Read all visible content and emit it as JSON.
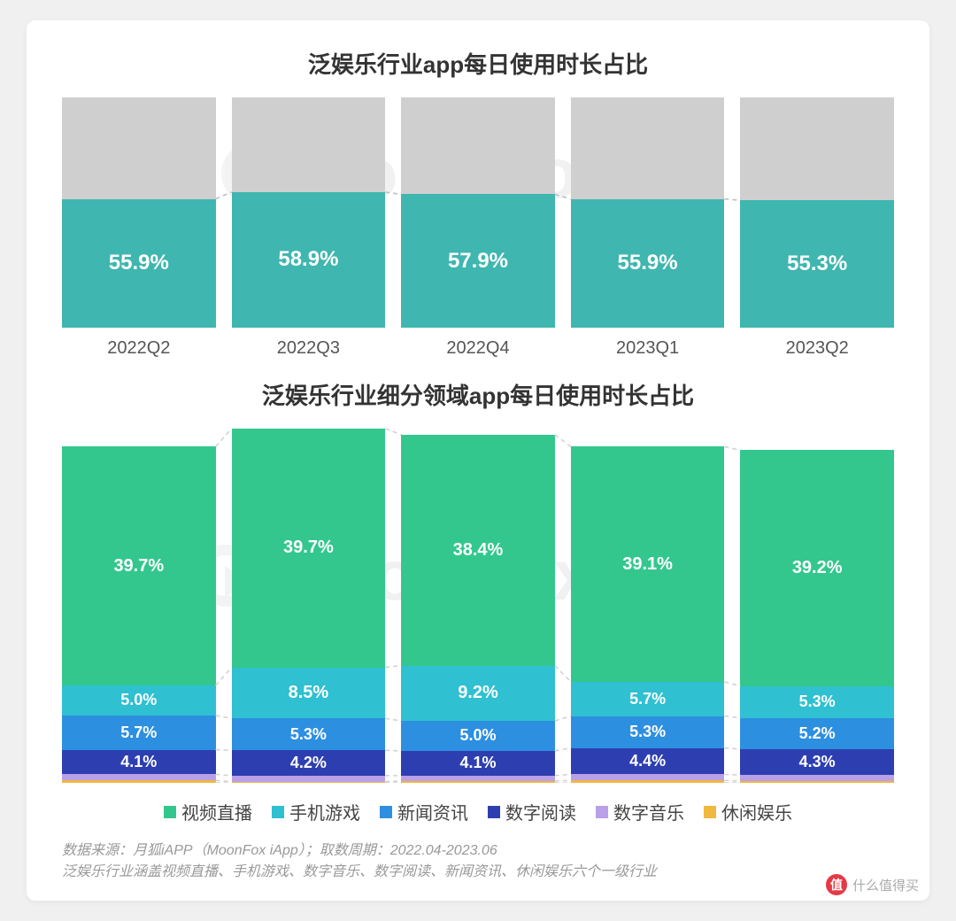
{
  "watermark_text": "MoonFox",
  "chart1": {
    "title": "泛娱乐行业app每日使用时长占比",
    "type": "stacked-bar-percent",
    "background_gray": "#cfcfcf",
    "bar_color": "#3fb6b0",
    "value_color": "#ffffff",
    "value_fontsize": 24,
    "title_fontsize": 26,
    "categories": [
      "2022Q2",
      "2022Q3",
      "2022Q4",
      "2023Q1",
      "2023Q2"
    ],
    "values": [
      55.9,
      58.9,
      57.9,
      55.9,
      55.3
    ],
    "ylim": [
      0,
      100
    ],
    "axis_label_fontsize": 20,
    "axis_label_color": "#555555"
  },
  "chart2": {
    "title": "泛娱乐行业细分领域app每日使用时长占比",
    "type": "stacked-bar",
    "title_fontsize": 26,
    "value_color": "#ffffff",
    "value_fontsize": 20,
    "categories": [
      "2022Q2",
      "2022Q3",
      "2022Q4",
      "2023Q1",
      "2023Q2"
    ],
    "series": [
      {
        "name": "视频直播",
        "color": "#33c78e"
      },
      {
        "name": "手机游戏",
        "color": "#2fc0d1"
      },
      {
        "name": "新闻资讯",
        "color": "#2d8fe0"
      },
      {
        "name": "数字阅读",
        "color": "#2d3fb0"
      },
      {
        "name": "数字音乐",
        "color": "#b9a0e8"
      },
      {
        "name": "休闲娱乐",
        "color": "#f0b840"
      }
    ],
    "data": [
      {
        "video": 39.7,
        "game": 5.0,
        "news": 5.7,
        "read": 4.1,
        "music": 1.0,
        "leisure": 0.4
      },
      {
        "video": 39.7,
        "game": 8.5,
        "news": 5.3,
        "read": 4.2,
        "music": 1.0,
        "leisure": 0.2
      },
      {
        "video": 38.4,
        "game": 9.2,
        "news": 5.0,
        "read": 4.1,
        "music": 0.9,
        "leisure": 0.3
      },
      {
        "video": 39.1,
        "game": 5.7,
        "news": 5.3,
        "read": 4.4,
        "music": 1.0,
        "leisure": 0.4
      },
      {
        "video": 39.2,
        "game": 5.3,
        "news": 5.2,
        "read": 4.3,
        "music": 1.0,
        "leisure": 0.3
      }
    ],
    "show_labels": [
      "video",
      "game",
      "news",
      "read"
    ],
    "connector_color": "#d0d0d0"
  },
  "legend": {
    "items": [
      {
        "label": "视频直播",
        "color": "#33c78e"
      },
      {
        "label": "手机游戏",
        "color": "#2fc0d1"
      },
      {
        "label": "新闻资讯",
        "color": "#2d8fe0"
      },
      {
        "label": "数字阅读",
        "color": "#2d3fb0"
      },
      {
        "label": "数字音乐",
        "color": "#b9a0e8"
      },
      {
        "label": "休闲娱乐",
        "color": "#f0b840"
      }
    ],
    "fontsize": 20,
    "label_color": "#444444"
  },
  "source": {
    "line1": "数据来源：月狐iAPP（MoonFox iApp）；取数周期：2022.04-2023.06",
    "line2": "泛娱乐行业涵盖视频直播、手机游戏、数字音乐、数字阅读、新闻资讯、休闲娱乐六个一级行业",
    "color": "#999999",
    "fontsize": 16
  },
  "branding": {
    "mark": "值",
    "text": "什么值得买",
    "mark_bg": "#e63946"
  }
}
